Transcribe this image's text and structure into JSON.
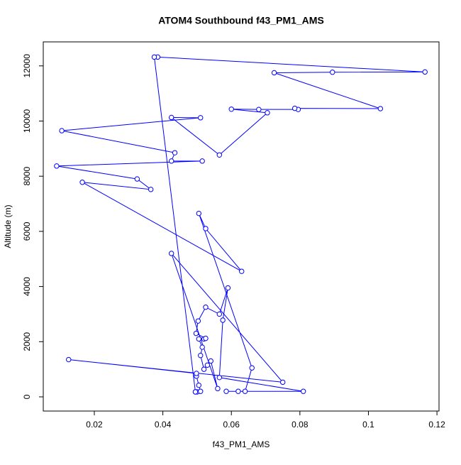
{
  "chart_data": {
    "type": "line",
    "title": "ATOM4 Southbound f43_PM1_AMS",
    "x_label": "f43_PM1_AMS",
    "y_label": "Altitude (m)",
    "x": [
      0.0495,
      0.05,
      0.051,
      0.0505,
      0.0498,
      0.0498,
      0.0125,
      0.075,
      0.0425,
      0.056,
      0.054,
      0.053,
      0.052,
      0.051,
      0.0515,
      0.0505,
      0.052,
      0.0525,
      0.0497,
      0.0503,
      0.0525,
      0.0565,
      0.059,
      0.0575,
      0.0565,
      0.081,
      0.0585,
      0.062,
      0.064,
      0.066,
      0.0505,
      0.0525,
      0.063,
      0.0165,
      0.0365,
      0.0325,
      0.009,
      0.0515,
      0.0425,
      0.0435,
      0.0105,
      0.051,
      0.0425,
      0.0565,
      0.0705,
      0.06,
      0.068,
      0.0795,
      0.0785,
      0.1035,
      0.0725,
      0.0895,
      0.1165,
      0.0385,
      0.0375,
      0.0495
    ],
    "series": [
      {
        "color": "#0000ff",
        "values": [
          180,
          180,
          200,
          420,
          750,
          850,
          1350,
          530,
          5200,
          300,
          1300,
          1150,
          1000,
          1500,
          1800,
          2100,
          2100,
          2120,
          2300,
          2750,
          3250,
          3000,
          3950,
          2780,
          700,
          200,
          200,
          200,
          200,
          1050,
          6650,
          6100,
          4550,
          7780,
          7520,
          7900,
          8370,
          8550,
          8550,
          8850,
          9650,
          10120,
          10130,
          8770,
          10300,
          10430,
          10420,
          10420,
          10460,
          10450,
          11750,
          11770,
          11780,
          12320,
          12320,
          180
        ]
      }
    ],
    "xlim": [
      0.0051,
      0.1206
    ],
    "ylim": [
      -515,
      12870
    ],
    "xticks": [
      0.02,
      0.04,
      0.06,
      0.08,
      0.1,
      0.12
    ],
    "yticks": [
      0,
      2000,
      4000,
      6000,
      8000,
      10000,
      12000
    ]
  }
}
